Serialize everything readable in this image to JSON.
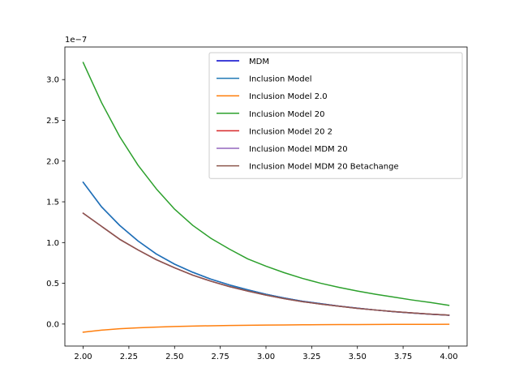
{
  "chart_data": {
    "type": "line",
    "title": "",
    "xlabel": "",
    "ylabel": "",
    "y_offset_text": "1e−7",
    "xlim": [
      1.9,
      4.1
    ],
    "ylim": [
      -0.27,
      3.4
    ],
    "x_ticks": [
      2.0,
      2.25,
      2.5,
      2.75,
      3.0,
      3.25,
      3.5,
      3.75,
      4.0
    ],
    "x_tick_labels": [
      "2.00",
      "2.25",
      "2.50",
      "2.75",
      "3.00",
      "3.25",
      "3.50",
      "3.75",
      "4.00"
    ],
    "y_ticks": [
      0.0,
      0.5,
      1.0,
      1.5,
      2.0,
      2.5,
      3.0
    ],
    "y_tick_labels": [
      "0.0",
      "0.5",
      "1.0",
      "1.5",
      "2.0",
      "2.5",
      "3.0"
    ],
    "legend_position": "top-right",
    "grid": false,
    "x": [
      2.0,
      2.1,
      2.2,
      2.3,
      2.4,
      2.5,
      2.6,
      2.7,
      2.8,
      2.9,
      3.0,
      3.1,
      3.2,
      3.3,
      3.4,
      3.5,
      3.6,
      3.7,
      3.8,
      3.9,
      4.0
    ],
    "series": [
      {
        "name": "MDM",
        "color": "#0000cc",
        "values": [
          1.74,
          1.44,
          1.21,
          1.02,
          0.86,
          0.735,
          0.635,
          0.55,
          0.48,
          0.42,
          0.365,
          0.32,
          0.28,
          0.25,
          0.22,
          0.195,
          0.172,
          0.152,
          0.135,
          0.12,
          0.108
        ]
      },
      {
        "name": "Inclusion Model",
        "color": "#1f77b4",
        "values": [
          1.74,
          1.44,
          1.21,
          1.02,
          0.86,
          0.735,
          0.635,
          0.55,
          0.48,
          0.42,
          0.365,
          0.32,
          0.28,
          0.25,
          0.22,
          0.195,
          0.172,
          0.152,
          0.135,
          0.12,
          0.108
        ]
      },
      {
        "name": "Inclusion Model 2.0",
        "color": "#ff7f0e",
        "values": [
          -0.1,
          -0.075,
          -0.058,
          -0.046,
          -0.037,
          -0.03,
          -0.025,
          -0.021,
          -0.018,
          -0.015,
          -0.013,
          -0.011,
          -0.0095,
          -0.008,
          -0.007,
          -0.006,
          -0.005,
          -0.0045,
          -0.004,
          -0.0035,
          -0.003
        ]
      },
      {
        "name": "Inclusion Model 20",
        "color": "#2ca02c",
        "values": [
          3.21,
          2.72,
          2.3,
          1.95,
          1.66,
          1.41,
          1.21,
          1.05,
          0.92,
          0.8,
          0.71,
          0.63,
          0.56,
          0.5,
          0.45,
          0.405,
          0.365,
          0.33,
          0.295,
          0.265,
          0.23
        ]
      },
      {
        "name": "Inclusion Model 20 2",
        "color": "#d62728",
        "values": [
          1.36,
          1.2,
          1.04,
          0.91,
          0.79,
          0.69,
          0.6,
          0.525,
          0.46,
          0.405,
          0.355,
          0.312,
          0.275,
          0.245,
          0.218,
          0.193,
          0.172,
          0.153,
          0.137,
          0.122,
          0.11
        ]
      },
      {
        "name": "Inclusion Model MDM 20",
        "color": "#9467bd",
        "values": [
          1.36,
          1.2,
          1.04,
          0.91,
          0.79,
          0.69,
          0.6,
          0.525,
          0.46,
          0.405,
          0.355,
          0.312,
          0.275,
          0.245,
          0.218,
          0.193,
          0.172,
          0.153,
          0.137,
          0.122,
          0.11
        ]
      },
      {
        "name": "Inclusion Model MDM 20 Betachange",
        "color": "#8c564b",
        "values": [
          1.36,
          1.2,
          1.04,
          0.91,
          0.79,
          0.69,
          0.6,
          0.525,
          0.46,
          0.405,
          0.355,
          0.312,
          0.275,
          0.245,
          0.218,
          0.193,
          0.172,
          0.153,
          0.137,
          0.122,
          0.11
        ]
      }
    ]
  }
}
